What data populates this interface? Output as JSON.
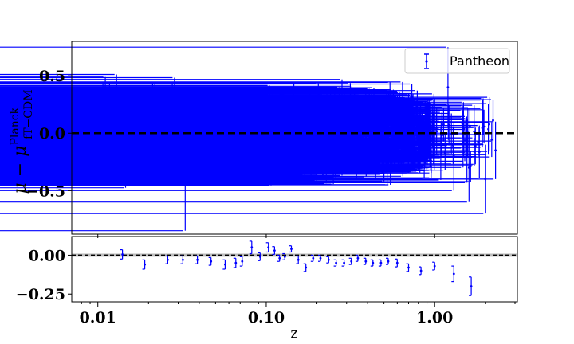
{
  "chart_data": [
    {
      "type": "scatter",
      "panel": "top",
      "xlabel": "",
      "ylabel_main": "μ − μ",
      "ylabel_sup": "Planck",
      "ylabel_sub": "fT−CDM",
      "xscale": "log",
      "xlim": [
        0.007,
        3.1
      ],
      "ylim": [
        -0.88,
        0.8
      ],
      "yticks": [
        0.5,
        0.0,
        -0.5
      ],
      "ytick_labels": [
        "0.5",
        "0.0",
        "−0.5"
      ],
      "reference_line": {
        "y": 0.0,
        "style": "dashed",
        "color": "#000000"
      },
      "legend": {
        "label": "Pantheon",
        "placement": "top-right"
      },
      "series": [
        {
          "name": "Pantheon",
          "color": "#0000ff",
          "n_points": 1048,
          "points_note_sample": [
            {
              "x": 0.0101,
              "y": 0.02,
              "err": 0.22
            },
            {
              "x": 0.0108,
              "y": -0.02,
              "err": 0.25
            },
            {
              "x": 0.012,
              "y": 0.05,
              "err": 0.2
            },
            {
              "x": 0.013,
              "y": 0.1,
              "err": 0.22
            },
            {
              "x": 0.015,
              "y": -0.05,
              "err": 0.3
            },
            {
              "x": 0.017,
              "y": -0.12,
              "err": 0.3
            },
            {
              "x": 0.02,
              "y": 0.05,
              "err": 0.25
            },
            {
              "x": 0.033,
              "y": -0.45,
              "err": 0.4
            },
            {
              "x": 0.068,
              "y": -0.05,
              "err": 0.3
            },
            {
              "x": 0.09,
              "y": 0.0,
              "err": 0.3
            },
            {
              "x": 0.14,
              "y": -0.15,
              "err": 0.25
            },
            {
              "x": 0.3,
              "y": -0.05,
              "err": 0.25
            },
            {
              "x": 0.5,
              "y": 0.05,
              "err": 0.2
            },
            {
              "x": 1.0,
              "y": 0.05,
              "err": 0.25
            },
            {
              "x": 1.2,
              "y": 0.4,
              "err": 0.35
            },
            {
              "x": 1.3,
              "y": -0.2,
              "err": 0.3
            },
            {
              "x": 1.6,
              "y": -0.3,
              "err": 0.3
            },
            {
              "x": 2.0,
              "y": -0.4,
              "err": 0.3
            },
            {
              "x": 2.3,
              "y": -0.15,
              "err": 0.25
            }
          ]
        }
      ]
    },
    {
      "type": "scatter",
      "panel": "bottom",
      "xlabel": "z",
      "xscale": "log",
      "xlim": [
        0.007,
        3.1
      ],
      "ylim": [
        -0.3,
        0.12
      ],
      "xticks": [
        0.01,
        0.1,
        1.0
      ],
      "xtick_labels": [
        "0.01",
        "0.10",
        "1.00"
      ],
      "yticks": [
        0.0,
        -0.25
      ],
      "ytick_labels": [
        "0.00",
        "−0.25"
      ],
      "reference_line": {
        "y": 0.0,
        "style": "dashed",
        "color": "#000000"
      },
      "band": {
        "y_min": -0.01,
        "y_max": 0.01,
        "color": "#bbbbbb"
      },
      "series": [
        {
          "color": "#0000ff",
          "x": [
            0.014,
            0.019,
            0.026,
            0.032,
            0.039,
            0.047,
            0.057,
            0.066,
            0.072,
            0.082,
            0.092,
            0.103,
            0.112,
            0.12,
            0.129,
            0.141,
            0.155,
            0.172,
            0.19,
            0.21,
            0.235,
            0.26,
            0.29,
            0.32,
            0.35,
            0.39,
            0.43,
            0.48,
            0.53,
            0.6,
            0.7,
            0.83,
            1.0,
            1.3,
            1.65
          ],
          "y": [
            0.005,
            -0.06,
            -0.03,
            -0.03,
            -0.03,
            -0.04,
            -0.06,
            -0.05,
            -0.04,
            0.05,
            -0.01,
            0.05,
            0.03,
            -0.02,
            -0.01,
            0.04,
            -0.03,
            -0.08,
            -0.02,
            -0.02,
            -0.03,
            -0.05,
            -0.05,
            -0.04,
            -0.02,
            -0.04,
            -0.05,
            -0.05,
            -0.04,
            -0.05,
            -0.08,
            -0.1,
            -0.07,
            -0.12,
            -0.2
          ],
          "err": [
            0.03,
            0.03,
            0.025,
            0.025,
            0.025,
            0.025,
            0.03,
            0.03,
            0.03,
            0.04,
            0.025,
            0.03,
            0.025,
            0.02,
            0.02,
            0.02,
            0.025,
            0.025,
            0.02,
            0.02,
            0.02,
            0.02,
            0.02,
            0.02,
            0.02,
            0.02,
            0.02,
            0.02,
            0.02,
            0.025,
            0.025,
            0.025,
            0.025,
            0.05,
            0.06
          ]
        }
      ]
    }
  ]
}
